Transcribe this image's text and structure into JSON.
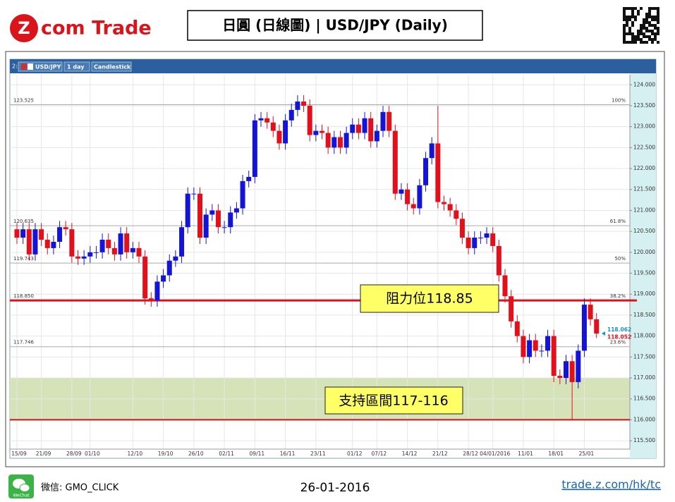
{
  "header": {
    "logo": "com Trade",
    "title": "日圓 (日線圖) | USD/JPY (Daily)"
  },
  "toolbar": {
    "index": "2:",
    "symbol": "USD/JPY",
    "interval": "1 day",
    "style": "Candlestick"
  },
  "footer": {
    "wechat_icon": "WeChat",
    "wechat": "微信: GMO_CLICK",
    "date": "26-01-2016",
    "url": "trade.z.com/hk/tc"
  },
  "chart_data": {
    "type": "candlestick",
    "up_color": "#1414d8",
    "down_color": "#e3101c",
    "categories": [
      "15/09",
      null,
      null,
      null,
      "21/09",
      null,
      null,
      null,
      null,
      "28/09",
      null,
      null,
      "01/10",
      null,
      null,
      null,
      null,
      null,
      null,
      "12/10",
      null,
      null,
      null,
      null,
      "19/10",
      null,
      null,
      null,
      null,
      "26/10",
      null,
      null,
      null,
      null,
      "02/11",
      null,
      null,
      null,
      null,
      "09/11",
      null,
      null,
      null,
      null,
      "16/11",
      null,
      null,
      null,
      null,
      "23/11",
      null,
      null,
      null,
      null,
      null,
      "01/12",
      null,
      null,
      null,
      "07/12",
      null,
      null,
      null,
      null,
      "14/12",
      null,
      null,
      null,
      null,
      "21/12",
      null,
      null,
      null,
      null,
      "28/12",
      null,
      null,
      null,
      "04/01/2016",
      null,
      null,
      null,
      null,
      "11/01",
      null,
      null,
      null,
      null,
      "18/01",
      null,
      null,
      null,
      null,
      "25/01",
      null,
      null
    ],
    "open": [
      120.55,
      120.35,
      120.55,
      119.95,
      120.55,
      120.3,
      120.1,
      120.25,
      120.6,
      120.55,
      119.9,
      119.85,
      119.9,
      120.0,
      120.0,
      120.3,
      120.1,
      119.95,
      120.45,
      120.0,
      120.1,
      119.9,
      118.9,
      118.85,
      119.3,
      119.45,
      119.8,
      119.9,
      120.6,
      121.4,
      121.4,
      120.35,
      120.9,
      121.0,
      120.6,
      120.6,
      120.95,
      121.05,
      121.7,
      121.8,
      123.15,
      123.2,
      123.1,
      122.9,
      122.6,
      123.15,
      123.4,
      123.6,
      123.5,
      122.8,
      122.9,
      122.85,
      122.5,
      122.75,
      122.5,
      122.85,
      123.05,
      122.85,
      123.2,
      122.65,
      122.9,
      123.35,
      122.9,
      121.4,
      121.5,
      121.15,
      121.05,
      121.6,
      122.25,
      122.6,
      121.2,
      121.15,
      121.0,
      120.8,
      120.35,
      120.1,
      120.35,
      120.35,
      120.45,
      120.15,
      119.45,
      118.95,
      118.35,
      118.0,
      117.5,
      117.9,
      117.65,
      117.65,
      118.0,
      117.05,
      117.0,
      117.4,
      116.9,
      117.65,
      118.75,
      118.4
    ],
    "high": [
      120.7,
      120.7,
      120.7,
      120.7,
      120.7,
      120.45,
      120.4,
      120.75,
      120.75,
      120.7,
      120.05,
      120.05,
      120.15,
      120.15,
      120.45,
      120.45,
      120.25,
      120.6,
      120.6,
      120.25,
      120.25,
      120.05,
      119.05,
      119.45,
      119.6,
      119.95,
      120.05,
      120.75,
      121.55,
      121.55,
      121.55,
      121.05,
      121.15,
      121.15,
      120.75,
      121.1,
      121.2,
      121.85,
      121.95,
      123.3,
      123.35,
      123.35,
      123.25,
      123.05,
      123.3,
      123.55,
      123.75,
      123.75,
      123.65,
      123.05,
      123.05,
      123.0,
      122.9,
      122.9,
      123.0,
      123.2,
      123.2,
      123.35,
      123.35,
      123.05,
      123.5,
      123.5,
      123.05,
      121.65,
      121.65,
      121.3,
      121.75,
      122.4,
      122.75,
      123.5,
      121.35,
      121.3,
      121.15,
      120.95,
      120.5,
      120.5,
      120.5,
      120.6,
      120.6,
      120.3,
      119.6,
      119.1,
      118.5,
      118.15,
      118.05,
      118.05,
      117.8,
      118.15,
      118.15,
      117.2,
      117.55,
      117.55,
      117.8,
      118.9,
      118.9,
      118.55
    ],
    "low": [
      120.2,
      120.2,
      119.8,
      119.8,
      120.15,
      119.95,
      119.95,
      120.1,
      120.4,
      119.75,
      119.7,
      119.7,
      119.75,
      119.85,
      119.85,
      119.95,
      119.8,
      119.8,
      119.85,
      119.85,
      119.75,
      118.75,
      118.7,
      118.7,
      119.15,
      119.3,
      119.65,
      119.75,
      120.45,
      121.25,
      120.2,
      120.2,
      120.75,
      120.45,
      120.45,
      120.45,
      120.8,
      120.9,
      121.55,
      121.65,
      123.0,
      122.95,
      122.75,
      122.45,
      122.45,
      123.0,
      123.25,
      123.35,
      122.65,
      122.65,
      122.7,
      122.35,
      122.35,
      122.35,
      122.35,
      122.7,
      122.7,
      122.7,
      122.5,
      122.5,
      122.75,
      122.75,
      121.25,
      121.25,
      121.0,
      120.9,
      120.9,
      121.45,
      122.1,
      121.05,
      121.0,
      120.85,
      120.65,
      120.2,
      119.95,
      119.95,
      120.2,
      120.2,
      120.0,
      119.3,
      118.8,
      118.2,
      117.85,
      117.35,
      117.35,
      117.5,
      117.5,
      117.5,
      116.9,
      116.85,
      116.85,
      116.0,
      116.75,
      117.5,
      118.25,
      117.95
    ],
    "close": [
      120.35,
      120.55,
      119.95,
      120.55,
      120.3,
      120.1,
      120.25,
      120.6,
      120.55,
      119.9,
      119.85,
      119.9,
      120.0,
      120.0,
      120.3,
      120.1,
      119.95,
      120.45,
      120.0,
      120.1,
      119.9,
      118.9,
      118.85,
      119.3,
      119.45,
      119.8,
      119.9,
      120.6,
      121.4,
      121.4,
      120.35,
      120.9,
      121.0,
      120.6,
      120.6,
      120.95,
      121.05,
      121.7,
      121.8,
      123.15,
      123.2,
      123.1,
      122.9,
      122.6,
      123.15,
      123.4,
      123.6,
      123.5,
      122.8,
      122.9,
      122.85,
      122.5,
      122.75,
      122.5,
      122.85,
      123.05,
      122.85,
      123.2,
      122.65,
      122.9,
      123.35,
      122.9,
      121.4,
      121.5,
      121.15,
      121.05,
      121.6,
      122.25,
      122.6,
      121.2,
      121.15,
      121.0,
      120.8,
      120.35,
      120.1,
      120.35,
      120.35,
      120.45,
      120.15,
      119.45,
      118.95,
      118.35,
      118.0,
      117.5,
      117.9,
      117.65,
      117.65,
      118.0,
      117.05,
      117.0,
      117.4,
      116.9,
      117.65,
      118.75,
      118.4,
      118.06
    ],
    "ylim": [
      115.3,
      124.24
    ],
    "yticks": [
      {
        "value": 115.5,
        "label": "115.500"
      },
      {
        "value": 116,
        "label": "116.000"
      },
      {
        "value": 116.5,
        "label": "116.500"
      },
      {
        "value": 117,
        "label": "117.000"
      },
      {
        "value": 117.5,
        "label": "117.500"
      },
      {
        "value": 118,
        "label": "118.000"
      },
      {
        "value": 118.5,
        "label": "118.500"
      },
      {
        "value": 119,
        "label": "119.000"
      },
      {
        "value": 119.5,
        "label": "119.500"
      },
      {
        "value": 120,
        "label": "120.000"
      },
      {
        "value": 120.5,
        "label": "120.500"
      },
      {
        "value": 121,
        "label": "121.000"
      },
      {
        "value": 121.5,
        "label": "121.500"
      },
      {
        "value": 122,
        "label": "122.000"
      },
      {
        "value": 122.5,
        "label": "122.500"
      },
      {
        "value": 123,
        "label": "123.000"
      },
      {
        "value": 123.5,
        "label": "123.500"
      },
      {
        "value": 124,
        "label": "124.000"
      }
    ],
    "grid": true,
    "fib_levels": [
      {
        "value": 123.525,
        "label": "123.525",
        "ratio": "100%"
      },
      {
        "value": 120.635,
        "label": "120.635",
        "ratio": "61.8%"
      },
      {
        "value": 119.743,
        "label": "119.743",
        "ratio": "50%"
      },
      {
        "value": 118.85,
        "label": "118.850",
        "ratio": "38.2%"
      },
      {
        "value": 117.746,
        "label": "117.746",
        "ratio": "23.6%"
      }
    ],
    "price_tags": [
      {
        "value": 118.062,
        "color": "#1a8fd0"
      },
      {
        "value": 118.052,
        "color": "#e3101c"
      }
    ],
    "resistance": {
      "value": 118.85,
      "label": "阻力位118.85",
      "color": "#e3101c"
    },
    "support_zone": {
      "from": 116,
      "to": 117,
      "label": "支持區間117-116",
      "color": "#d6e3b8",
      "line_color": "#d01018"
    }
  }
}
